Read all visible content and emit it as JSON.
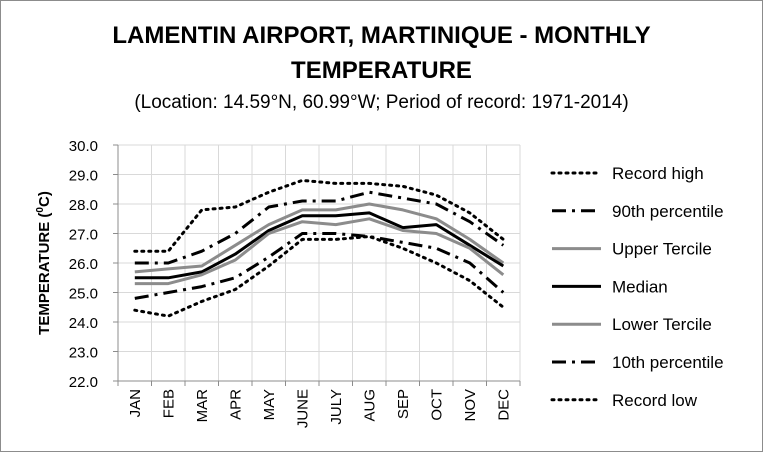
{
  "chart_data": {
    "type": "line",
    "title_line1": "LAMENTIN AIRPORT, MARTINIQUE - MONTHLY",
    "title_line2": "TEMPERATURE",
    "subtitle": "(Location: 14.59°N, 60.99°W; Period of record: 1971-2014)",
    "xlabel": "",
    "ylabel_main": "TEMPERATURE (",
    "ylabel_sup": "0",
    "ylabel_end": "C)",
    "categories": [
      "JAN",
      "FEB",
      "MAR",
      "APR",
      "MAY",
      "JUNE",
      "JULY",
      "AUG",
      "SEP",
      "OCT",
      "NOV",
      "DEC"
    ],
    "ylim": [
      22.0,
      30.0
    ],
    "yticks": [
      "22.0",
      "23.0",
      "24.0",
      "25.0",
      "26.0",
      "27.0",
      "28.0",
      "29.0",
      "30.0"
    ],
    "grid": true,
    "legend_position": "right",
    "series": [
      {
        "name": "Record high",
        "style": "dotted",
        "color": "#000000",
        "values": [
          26.4,
          26.4,
          27.8,
          27.9,
          28.4,
          28.8,
          28.7,
          28.7,
          28.6,
          28.3,
          27.7,
          26.8
        ]
      },
      {
        "name": "90th percentile",
        "style": "dashdot",
        "color": "#000000",
        "values": [
          26.0,
          26.0,
          26.4,
          27.0,
          27.9,
          28.1,
          28.1,
          28.4,
          28.2,
          28.0,
          27.4,
          26.6
        ]
      },
      {
        "name": "Upper Tercile",
        "style": "solid",
        "color": "#8c8c8c",
        "values": [
          25.7,
          25.8,
          25.9,
          26.6,
          27.3,
          27.8,
          27.8,
          28.0,
          27.8,
          27.5,
          26.8,
          26.0
        ]
      },
      {
        "name": "Median",
        "style": "solid",
        "color": "#000000",
        "values": [
          25.5,
          25.5,
          25.7,
          26.3,
          27.1,
          27.6,
          27.6,
          27.7,
          27.2,
          27.3,
          26.6,
          25.9
        ]
      },
      {
        "name": "Lower Tercile",
        "style": "solid",
        "color": "#8c8c8c",
        "values": [
          25.3,
          25.3,
          25.6,
          26.1,
          27.0,
          27.4,
          27.3,
          27.5,
          27.1,
          27.0,
          26.5,
          25.6
        ]
      },
      {
        "name": "10th percentile",
        "style": "dashdot",
        "color": "#000000",
        "values": [
          24.8,
          25.0,
          25.2,
          25.5,
          26.2,
          27.0,
          27.0,
          26.9,
          26.7,
          26.5,
          26.0,
          25.0
        ]
      },
      {
        "name": "Record low",
        "style": "dotted",
        "color": "#000000",
        "values": [
          24.4,
          24.2,
          24.7,
          25.1,
          25.9,
          26.8,
          26.8,
          26.9,
          26.5,
          26.0,
          25.4,
          24.5
        ]
      }
    ]
  }
}
